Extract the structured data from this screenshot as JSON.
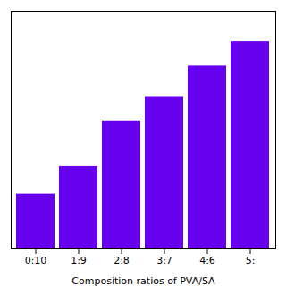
{
  "chart_data": {
    "type": "bar",
    "xlabel": "Composition ratios of PVA/SA",
    "categories": [
      "0:10",
      "1:9",
      "2:8",
      "3:7",
      "4:6",
      "5:"
    ],
    "values": [
      0.18,
      0.27,
      0.42,
      0.5,
      0.6,
      0.68
    ],
    "color": "#6600ee",
    "ylim": [
      0,
      0.78
    ],
    "tick_labels": "x",
    "grid": false
  }
}
